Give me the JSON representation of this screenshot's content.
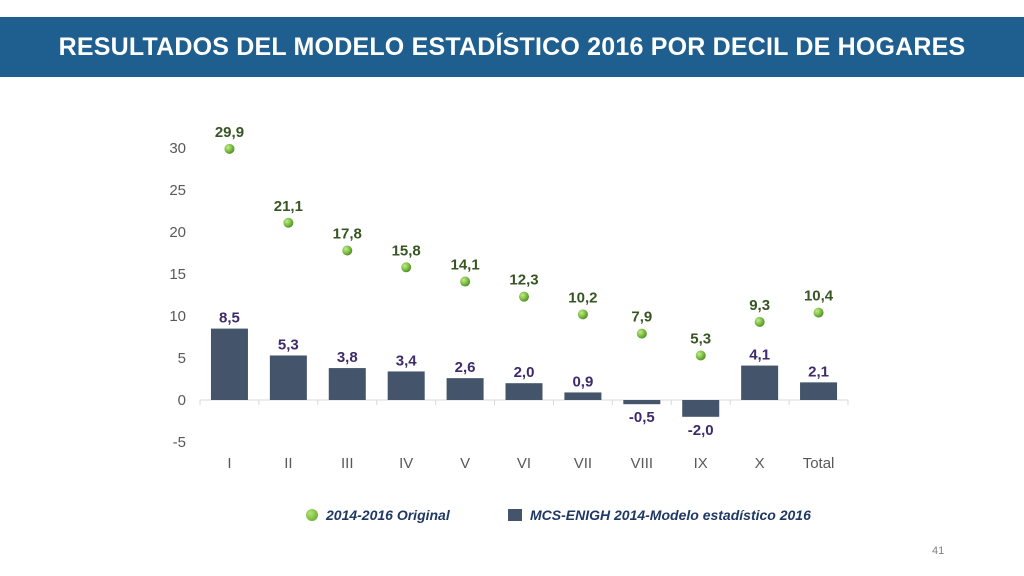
{
  "header": {
    "title": "RESULTADOS DEL MODELO ESTADÍSTICO 2016 POR DECIL DE HOGARES"
  },
  "footer": {
    "page_number": "41"
  },
  "colors": {
    "header_bg": "#1f5f8f",
    "bar": "#44546a",
    "point": "#7ec044",
    "point_label": "#375623",
    "bar_label": "#3d2b6b"
  },
  "chart_data": {
    "type": "bar",
    "categories": [
      "I",
      "II",
      "III",
      "IV",
      "V",
      "VI",
      "VII",
      "VIII",
      "IX",
      "X",
      "Total"
    ],
    "series": [
      {
        "name": "MCS-ENIGH 2014-Modelo estadístico 2016",
        "type": "bar",
        "values": [
          8.5,
          5.3,
          3.8,
          3.4,
          2.6,
          2.0,
          0.9,
          -0.5,
          -2.0,
          4.1,
          2.1
        ],
        "labels": [
          "8,5",
          "5,3",
          "3,8",
          "3,4",
          "2,6",
          "2,0",
          "0,9",
          "-0,5",
          "-2,0",
          "4,1",
          "2,1"
        ]
      },
      {
        "name": "2014-2016 Original",
        "type": "scatter",
        "values": [
          29.9,
          21.1,
          17.8,
          15.8,
          14.1,
          12.3,
          10.2,
          7.9,
          5.3,
          9.3,
          10.4
        ],
        "labels": [
          "29,9",
          "21,1",
          "17,8",
          "15,8",
          "14,1",
          "12,3",
          "10,2",
          "7,9",
          "5,3",
          "9,3",
          "10,4"
        ]
      }
    ],
    "ylim": [
      -5,
      30
    ],
    "yticks": [
      -5,
      0,
      5,
      10,
      15,
      20,
      25,
      30
    ],
    "ytick_labels": [
      "-5",
      "0",
      "5",
      "10",
      "15",
      "20",
      "25",
      "30"
    ],
    "title": "",
    "xlabel": "",
    "ylabel": "",
    "grid": false,
    "legend_position": "bottom"
  }
}
